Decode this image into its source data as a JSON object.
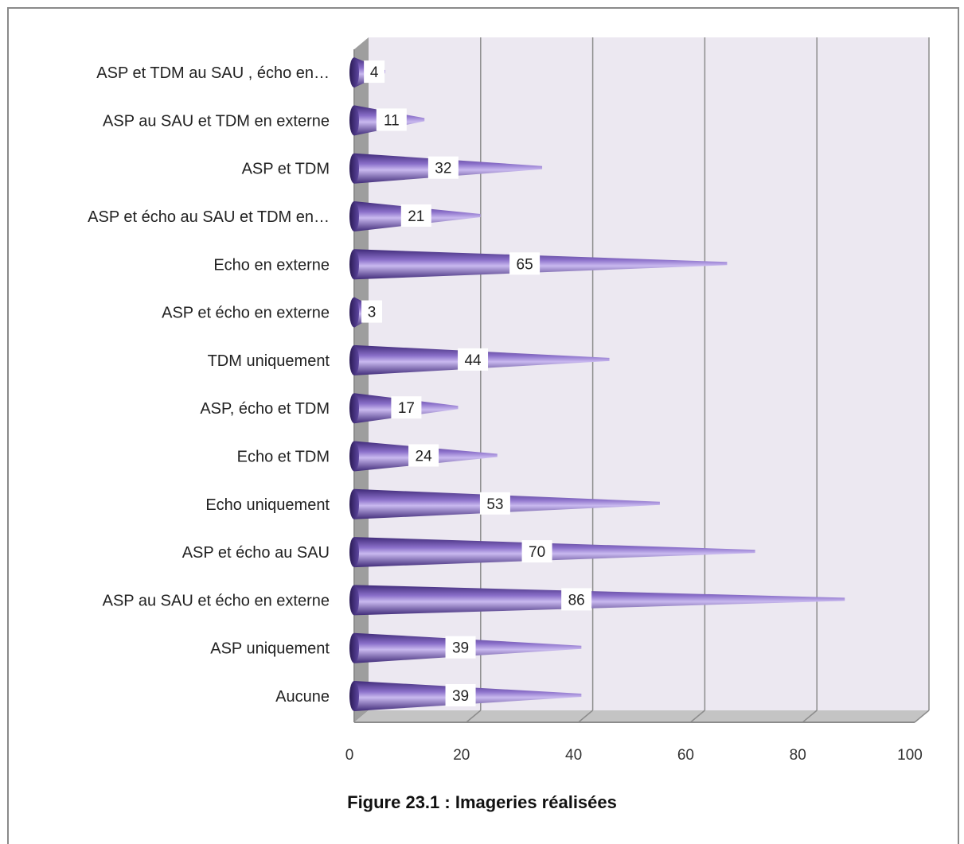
{
  "caption": "Figure 23.1 : Imageries réalisées",
  "colors": {
    "bar_dark": "#3f2a78",
    "bar_mid": "#8a6fc9",
    "bar_light": "#c9b9ef",
    "wall": "#ece8f1",
    "floor": "#c4c4c4",
    "gridline": "#8c8c8c"
  },
  "chart_data": {
    "type": "bar",
    "orientation": "horizontal",
    "mark_shape": "3d-cone",
    "categories": [
      "Aucune",
      "ASP uniquement",
      "ASP au SAU et écho en externe",
      "ASP et écho au SAU",
      "Echo uniquement",
      "Echo et TDM",
      "ASP, écho et TDM",
      "TDM uniquement",
      "ASP et écho en externe",
      "Echo en externe",
      "ASP et écho au SAU et TDM en…",
      "ASP et TDM",
      "ASP au SAU et TDM en externe",
      "ASP et TDM au SAU , écho en…"
    ],
    "values": [
      39,
      39,
      86,
      70,
      53,
      24,
      17,
      44,
      3,
      65,
      21,
      32,
      11,
      4
    ],
    "xlim": [
      0,
      100
    ],
    "xticks": [
      0,
      20,
      40,
      60,
      80,
      100
    ],
    "title": "",
    "xlabel": "",
    "ylabel": "",
    "grid": "vertical major",
    "legend": "none",
    "data_labels": true
  }
}
